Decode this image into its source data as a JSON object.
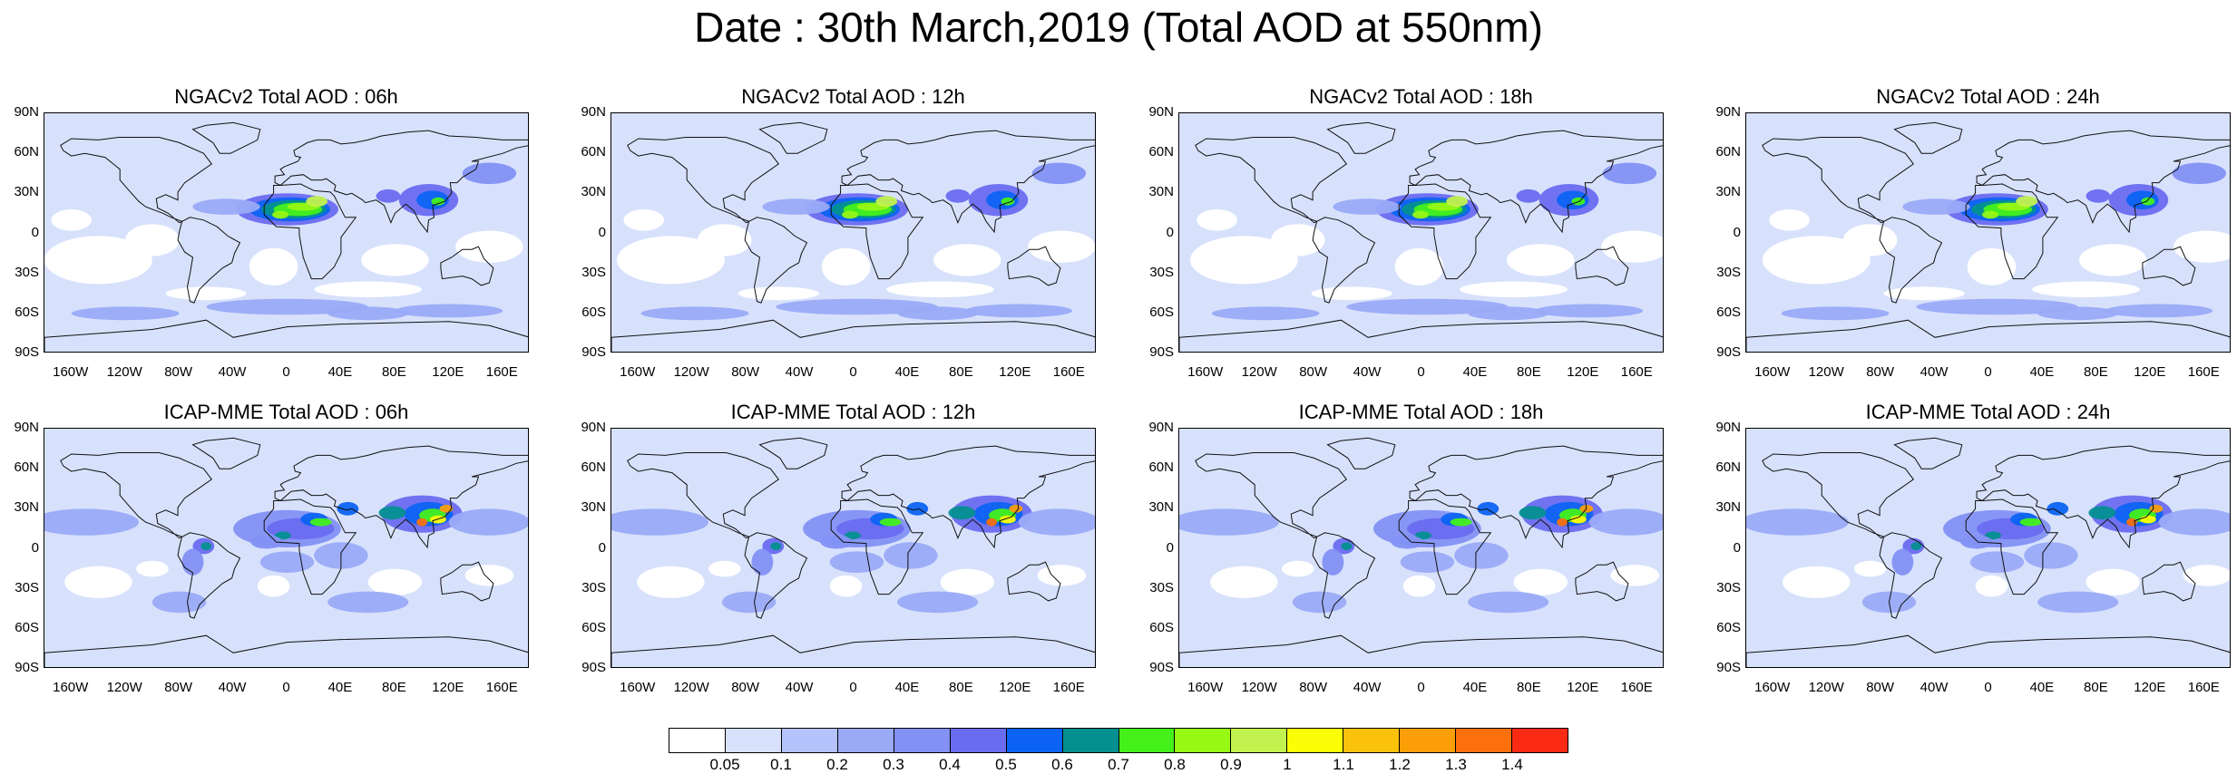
{
  "title": "Date : 30th March,2019 (Total AOD at 550nm)",
  "lat_labels": [
    "90N",
    "60N",
    "30N",
    "0",
    "30S",
    "60S",
    "90S"
  ],
  "lon_labels": [
    "160W",
    "120W",
    "80W",
    "40W",
    "0",
    "40E",
    "80E",
    "120E",
    "160E"
  ],
  "panels": [
    {
      "title": "NGACv2 Total AOD : 06h",
      "model": "NGACv2",
      "hour": "06h"
    },
    {
      "title": "NGACv2 Total AOD : 12h",
      "model": "NGACv2",
      "hour": "12h"
    },
    {
      "title": "NGACv2 Total AOD : 18h",
      "model": "NGACv2",
      "hour": "18h"
    },
    {
      "title": "NGACv2 Total AOD : 24h",
      "model": "NGACv2",
      "hour": "24h"
    },
    {
      "title": "ICAP-MME Total AOD : 06h",
      "model": "ICAP-MME",
      "hour": "06h"
    },
    {
      "title": "ICAP-MME Total AOD : 12h",
      "model": "ICAP-MME",
      "hour": "12h"
    },
    {
      "title": "ICAP-MME Total AOD : 18h",
      "model": "ICAP-MME",
      "hour": "18h"
    },
    {
      "title": "ICAP-MME Total AOD : 24h",
      "model": "ICAP-MME",
      "hour": "24h"
    }
  ],
  "colorbar": {
    "colors": [
      "#ffffff",
      "#d7e1fc",
      "#b4c3fb",
      "#9aaaf7",
      "#8391f4",
      "#6a6cf0",
      "#0c63f3",
      "#03908f",
      "#44f11a",
      "#97f814",
      "#c2f24d",
      "#fbfd06",
      "#fbc20b",
      "#fb9e08",
      "#fb700c",
      "#fa2b12"
    ],
    "labels": [
      "0.05",
      "0.1",
      "0.2",
      "0.3",
      "0.4",
      "0.5",
      "0.6",
      "0.7",
      "0.8",
      "0.9",
      "1",
      "1.1",
      "1.2",
      "1.3",
      "1.4"
    ]
  }
}
